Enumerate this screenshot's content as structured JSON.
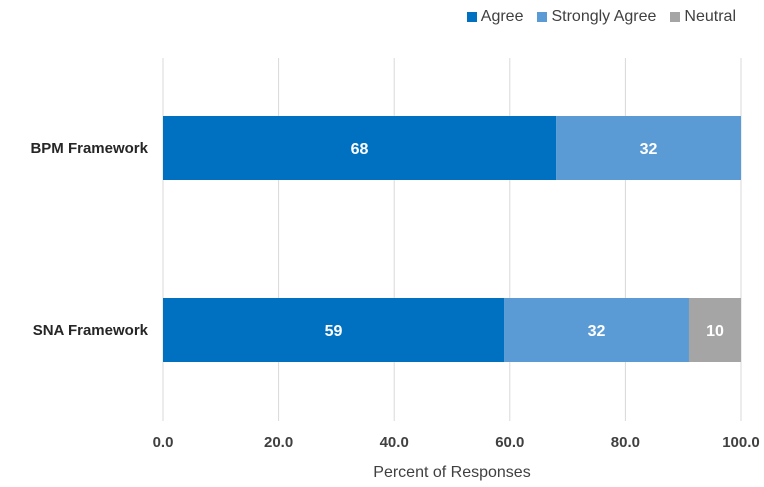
{
  "chart_data": {
    "type": "bar",
    "orientation": "horizontal",
    "stacked": true,
    "categories": [
      "BPM Framework",
      "SNA Framework"
    ],
    "series": [
      {
        "name": "Agree",
        "color": "#0070C0",
        "values": [
          68,
          59
        ]
      },
      {
        "name": "Strongly Agree",
        "color": "#5B9BD5",
        "values": [
          32,
          32
        ]
      },
      {
        "name": "Neutral",
        "color": "#A5A5A5",
        "values": [
          0,
          10
        ]
      }
    ],
    "xlabel": "Percent of Responses",
    "ylabel": "",
    "xlim": [
      0,
      100
    ],
    "xticks": [
      "0.0",
      "20.0",
      "40.0",
      "60.0",
      "80.0",
      "100.0"
    ],
    "grid": true,
    "legend_position": "top-right"
  }
}
